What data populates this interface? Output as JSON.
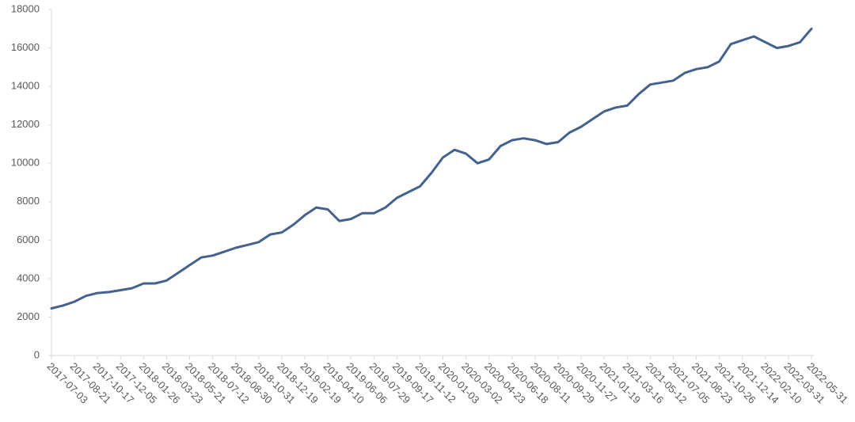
{
  "chart_data": {
    "type": "line",
    "categories": [
      "2017-07-03",
      null,
      "2017-08-21",
      null,
      "2017-10-17",
      null,
      "2017-12-05",
      null,
      "2018-01-26",
      null,
      "2018-03-23",
      null,
      "2018-05-21",
      null,
      "2018-07-12",
      null,
      "2018-08-30",
      null,
      "2018-10-31",
      null,
      "2018-12-19",
      null,
      "2019-02-19",
      null,
      "2019-04-10",
      null,
      "2019-06-06",
      null,
      "2019-07-29",
      null,
      "2019-09-17",
      null,
      "2019-11-12",
      null,
      "2020-01-03",
      null,
      "2020-03-02",
      null,
      "2020-04-23",
      null,
      "2020-06-18",
      null,
      "2020-08-11",
      null,
      "2020-09-29",
      null,
      "2020-11-27",
      null,
      "2021-01-19",
      null,
      "2021-03-16",
      null,
      "2021-05-12",
      null,
      "2021-07-05",
      null,
      "2021-08-23",
      null,
      "2021-10-26",
      null,
      "2021-12-14",
      null,
      "2022-02-10",
      null,
      "2022-03-31",
      null,
      "2022-05-31"
    ],
    "series": [
      {
        "color": "#44628e",
        "values": [
          2450,
          2600,
          2800,
          3100,
          3250,
          3300,
          3400,
          3500,
          3750,
          3750,
          3900,
          4300,
          4700,
          5100,
          5200,
          5400,
          5600,
          5750,
          5900,
          6300,
          6400,
          6800,
          7300,
          7700,
          7600,
          7000,
          7100,
          7400,
          7400,
          7700,
          8200,
          8500,
          8800,
          9500,
          10300,
          10700,
          10500,
          10000,
          10200,
          10900,
          11200,
          11300,
          11200,
          11000,
          11100,
          11600,
          11900,
          12300,
          12700,
          12900,
          13000,
          13600,
          14100,
          14200,
          14300,
          14700,
          14900,
          15000,
          15300,
          16200,
          16400,
          16600,
          16300,
          16000,
          16100,
          16300,
          17000
        ]
      }
    ],
    "ylim": [
      0,
      18000
    ],
    "yticks": [
      0,
      2000,
      4000,
      6000,
      8000,
      10000,
      12000,
      14000,
      16000,
      18000
    ],
    "grid": false
  }
}
